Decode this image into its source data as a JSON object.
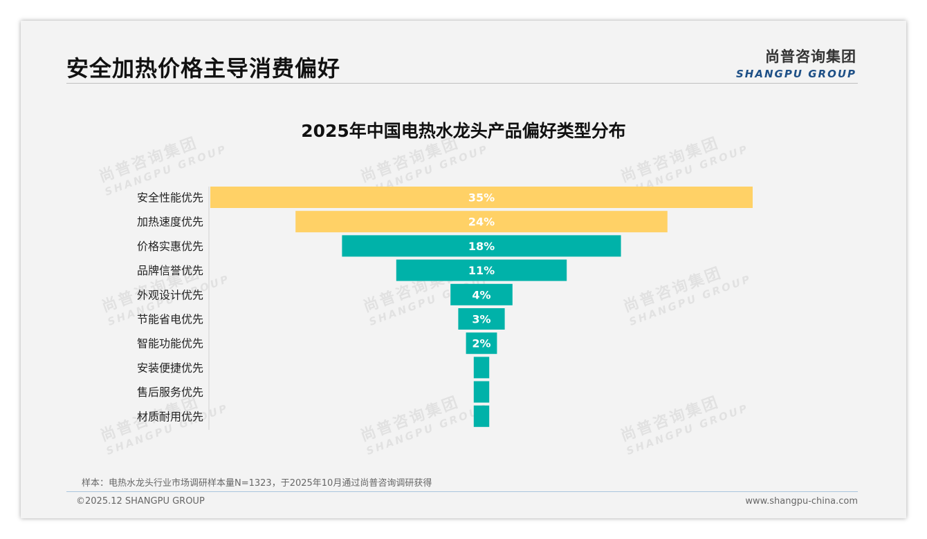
{
  "header": {
    "title": "安全加热价格主导消费偏好",
    "logo_cn": "尚普咨询集团",
    "logo_en": "SHANGPU GROUP"
  },
  "watermark": {
    "cn": "尚普咨询集团",
    "en": "SHANGPU GROUP"
  },
  "chart_data": {
    "type": "bar",
    "style": "funnel (centered horizontal bars)",
    "title": "2025年中国电热水龙头产品偏好类型分布",
    "xlabel": "",
    "ylabel": "",
    "unit": "%",
    "xlim": [
      0,
      35
    ],
    "categories": [
      "安全性能优先",
      "加热速度优先",
      "价格实惠优先",
      "品牌信誉优先",
      "外观设计优先",
      "节能省电优先",
      "智能功能优先",
      "安装便捷优先",
      "售后服务优先",
      "材质耐用优先"
    ],
    "values": [
      35,
      24,
      18,
      11,
      4,
      3,
      2,
      1,
      1,
      1
    ],
    "data_labels": [
      "35%",
      "24%",
      "18%",
      "11%",
      "4%",
      "3%",
      "2%",
      "",
      "",
      ""
    ],
    "colors": [
      "#FFD166",
      "#FFD166",
      "#00B2A9",
      "#00B2A9",
      "#00B2A9",
      "#00B2A9",
      "#00B2A9",
      "#00B2A9",
      "#00B2A9",
      "#00B2A9"
    ],
    "legend": "none",
    "grid": false
  },
  "footer": {
    "note": "样本：电热水龙头行业市场调研样本量N=1323，于2025年10月通过尚普咨询调研获得",
    "copyright": "©2025.12 SHANGPU GROUP",
    "website": "www.shangpu-china.com"
  }
}
